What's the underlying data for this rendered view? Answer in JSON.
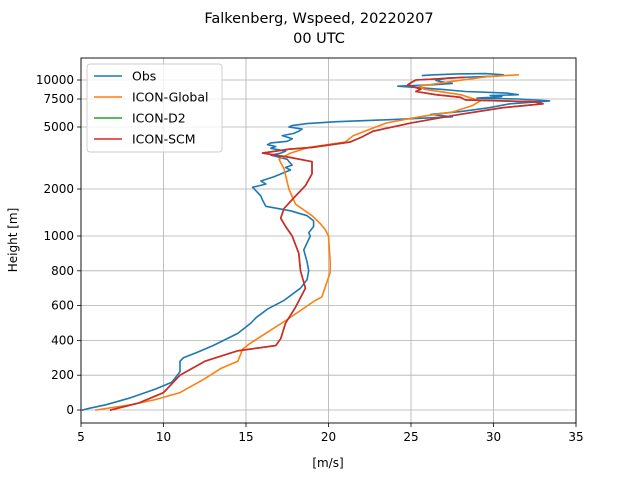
{
  "chart_data": {
    "type": "line",
    "title": "Falkenberg, Wspeed, 20220207",
    "subtitle": "00 UTC",
    "xlabel": "[m/s]",
    "ylabel": "Height [m]",
    "xlim": [
      5,
      35
    ],
    "ylim": [
      -100,
      12500
    ],
    "x_ticks": [
      5,
      10,
      15,
      20,
      25,
      30,
      35
    ],
    "y_ticks": [
      0,
      200,
      400,
      600,
      800,
      1000,
      2000,
      5000,
      7500,
      10000
    ],
    "y_tick_labels": [
      "0",
      "200",
      "400",
      "600",
      "800",
      "1000",
      "2000",
      "5000",
      "7500",
      "10000"
    ],
    "y_scale": "piecewise (linear 0–1000 m, log above 1000 m)",
    "grid": true,
    "legend": {
      "position": "top-left",
      "entries": [
        "Obs",
        "ICON-Global",
        "ICON-D2",
        "ICON-SCM"
      ]
    },
    "colors": {
      "Obs": "#1f77b4",
      "ICON-Global": "#ff7f0e",
      "ICON-D2": "#2ca02c",
      "ICON-SCM": "#d62728"
    },
    "series": [
      {
        "name": "Obs",
        "points": [
          [
            5.1,
            0
          ],
          [
            5.5,
            10
          ],
          [
            6.5,
            30
          ],
          [
            8,
            70
          ],
          [
            9.5,
            120
          ],
          [
            10.5,
            160
          ],
          [
            11,
            220
          ],
          [
            11,
            280
          ],
          [
            11.2,
            300
          ],
          [
            12,
            330
          ],
          [
            13,
            370
          ],
          [
            14.5,
            440
          ],
          [
            15.3,
            500
          ],
          [
            15.6,
            530
          ],
          [
            16.3,
            580
          ],
          [
            17.3,
            630
          ],
          [
            18.3,
            700
          ],
          [
            18.7,
            750
          ],
          [
            18.8,
            800
          ],
          [
            18.7,
            850
          ],
          [
            18.5,
            920
          ],
          [
            18.9,
            1000
          ],
          [
            18.8,
            1050
          ],
          [
            19.1,
            1150
          ],
          [
            19.1,
            1250
          ],
          [
            18.7,
            1350
          ],
          [
            17.7,
            1450
          ],
          [
            16.2,
            1550
          ],
          [
            16,
            1700
          ],
          [
            15.9,
            1800
          ],
          [
            15.6,
            1950
          ],
          [
            15.4,
            2050
          ],
          [
            16.2,
            2150
          ],
          [
            15.9,
            2250
          ],
          [
            16.7,
            2400
          ],
          [
            17.3,
            2550
          ],
          [
            17.7,
            2650
          ],
          [
            17.4,
            2750
          ],
          [
            17.8,
            2850
          ],
          [
            17.6,
            3000
          ],
          [
            17.5,
            3100
          ],
          [
            16.5,
            3300
          ],
          [
            17.1,
            3400
          ],
          [
            17.4,
            3500
          ],
          [
            16.5,
            3650
          ],
          [
            16.8,
            3750
          ],
          [
            16.3,
            3850
          ],
          [
            16.5,
            3950
          ],
          [
            17.5,
            4050
          ],
          [
            17.8,
            4200
          ],
          [
            17.2,
            4400
          ],
          [
            17.9,
            4550
          ],
          [
            18.2,
            4700
          ],
          [
            18.4,
            4850
          ],
          [
            17.6,
            5000
          ],
          [
            17.8,
            5100
          ],
          [
            18.7,
            5250
          ],
          [
            20.5,
            5400
          ],
          [
            23.5,
            5550
          ],
          [
            25.2,
            5650
          ],
          [
            27.5,
            5800
          ],
          [
            26.2,
            6000
          ],
          [
            28,
            6250
          ],
          [
            29.7,
            6600
          ],
          [
            31,
            7000
          ],
          [
            33.4,
            7300
          ],
          [
            31.5,
            7500
          ],
          [
            29,
            7600
          ],
          [
            30.5,
            7750
          ],
          [
            29.8,
            7900
          ],
          [
            31.5,
            8000
          ],
          [
            30.8,
            8200
          ],
          [
            28.3,
            8400
          ],
          [
            27,
            8650
          ],
          [
            25.5,
            8900
          ],
          [
            24.2,
            9100
          ],
          [
            26.3,
            9300
          ],
          [
            27.5,
            9500
          ],
          [
            26.8,
            9750
          ],
          [
            26.5,
            9950
          ],
          [
            27.2,
            10300
          ],
          [
            30.2,
            10600
          ],
          [
            30.6,
            10800
          ],
          [
            29.5,
            11000
          ],
          [
            27.8,
            10950
          ],
          [
            26.4,
            10800
          ],
          [
            25.7,
            10700
          ]
        ]
      },
      {
        "name": "ICON-Global",
        "points": [
          [
            5.9,
            0
          ],
          [
            8,
            30
          ],
          [
            9.5,
            60
          ],
          [
            11,
            100
          ],
          [
            12.5,
            180
          ],
          [
            13.5,
            240
          ],
          [
            14.5,
            280
          ],
          [
            14.8,
            350
          ],
          [
            15.2,
            380
          ],
          [
            17.5,
            520
          ],
          [
            19.2,
            630
          ],
          [
            19.6,
            650
          ],
          [
            20.1,
            790
          ],
          [
            20.1,
            850
          ],
          [
            20,
            1000
          ],
          [
            19.8,
            1100
          ],
          [
            19.5,
            1200
          ],
          [
            19,
            1350
          ],
          [
            18,
            1600
          ],
          [
            17.6,
            2000
          ],
          [
            17.3,
            2700
          ],
          [
            17,
            3100
          ],
          [
            17.7,
            3400
          ],
          [
            18.8,
            3700
          ],
          [
            21,
            4000
          ],
          [
            21.5,
            4400
          ],
          [
            23.5,
            5300
          ],
          [
            25.5,
            5800
          ],
          [
            27.5,
            6200
          ],
          [
            28.7,
            6800
          ],
          [
            29.2,
            7300
          ],
          [
            28,
            8000
          ],
          [
            25.8,
            8700
          ],
          [
            25.5,
            9100
          ],
          [
            27.8,
            9900
          ],
          [
            29.6,
            10500
          ],
          [
            31.5,
            10800
          ]
        ]
      },
      {
        "name": "ICON-D2",
        "points": [
          [
            6.8,
            0
          ],
          [
            8.5,
            40
          ],
          [
            10,
            100
          ],
          [
            11,
            200
          ],
          [
            12.5,
            280
          ],
          [
            14.5,
            340
          ],
          [
            16.8,
            370
          ],
          [
            17.1,
            410
          ],
          [
            17.4,
            500
          ],
          [
            18,
            590
          ],
          [
            18.6,
            700
          ],
          [
            18.3,
            800
          ],
          [
            18.2,
            900
          ],
          [
            17.8,
            1000
          ],
          [
            17.4,
            1150
          ],
          [
            17.1,
            1300
          ],
          [
            17.3,
            1500
          ],
          [
            18,
            1800
          ],
          [
            18.6,
            2100
          ],
          [
            19,
            2500
          ],
          [
            19,
            3000
          ],
          [
            17.6,
            3200
          ],
          [
            16,
            3400
          ],
          [
            17.6,
            3600
          ],
          [
            19,
            3700
          ],
          [
            21.3,
            4000
          ],
          [
            22,
            4300
          ],
          [
            22.7,
            4700
          ],
          [
            25,
            5300
          ],
          [
            27.5,
            5900
          ],
          [
            30.5,
            6600
          ],
          [
            33,
            7000
          ],
          [
            32.5,
            7200
          ],
          [
            28.3,
            7400
          ],
          [
            28,
            7700
          ],
          [
            26.5,
            8000
          ],
          [
            25.3,
            8400
          ],
          [
            25.6,
            8700
          ],
          [
            25.2,
            9000
          ],
          [
            24.8,
            9300
          ],
          [
            25,
            9600
          ],
          [
            25.3,
            10000
          ],
          [
            27.5,
            10300
          ],
          [
            28.2,
            10400
          ]
        ]
      },
      {
        "name": "ICON-SCM",
        "points": [
          [
            6.8,
            0
          ],
          [
            8.5,
            40
          ],
          [
            10,
            100
          ],
          [
            11,
            200
          ],
          [
            12.5,
            280
          ],
          [
            14.5,
            340
          ],
          [
            16.8,
            370
          ],
          [
            17.1,
            410
          ],
          [
            17.4,
            500
          ],
          [
            18,
            590
          ],
          [
            18.6,
            700
          ],
          [
            18.3,
            800
          ],
          [
            18.2,
            900
          ],
          [
            17.8,
            1000
          ],
          [
            17.4,
            1150
          ],
          [
            17.1,
            1300
          ],
          [
            17.3,
            1500
          ],
          [
            18,
            1800
          ],
          [
            18.6,
            2100
          ],
          [
            19,
            2500
          ],
          [
            19,
            3000
          ],
          [
            17.6,
            3200
          ],
          [
            16,
            3400
          ],
          [
            17.6,
            3600
          ],
          [
            19,
            3700
          ],
          [
            21.3,
            4000
          ],
          [
            22,
            4300
          ],
          [
            22.7,
            4700
          ],
          [
            25,
            5300
          ],
          [
            27.5,
            5900
          ],
          [
            30.5,
            6600
          ],
          [
            33,
            7000
          ],
          [
            32.5,
            7200
          ],
          [
            28.3,
            7400
          ],
          [
            28,
            7700
          ],
          [
            26.5,
            8000
          ],
          [
            25.3,
            8400
          ],
          [
            25.6,
            8700
          ],
          [
            25.2,
            9000
          ],
          [
            24.8,
            9300
          ],
          [
            25,
            9600
          ],
          [
            25.3,
            10000
          ],
          [
            27.5,
            10300
          ],
          [
            28.2,
            10400
          ]
        ]
      }
    ]
  }
}
